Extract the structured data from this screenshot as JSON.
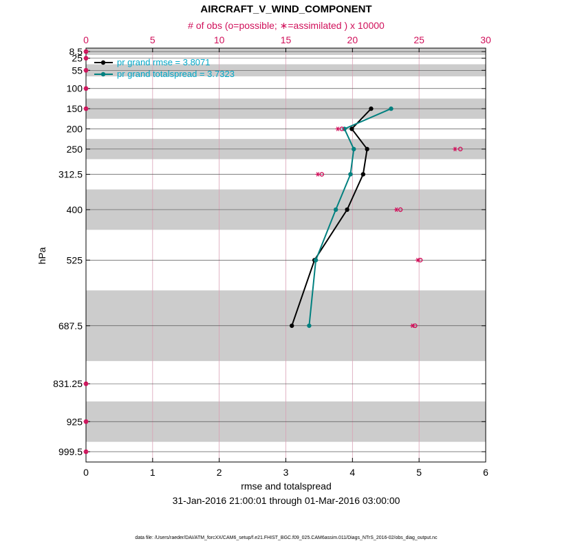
{
  "chart_data": {
    "type": "line",
    "title": "AIRCRAFT_V_WIND_COMPONENT",
    "top_axis_label": "# of obs (o=possible; ∗=assimilated ) x 10000",
    "xlabel": "rmse and totalspread",
    "ylabel": "hPa",
    "date_range": "31-Jan-2016 21:00:01 through 01-Mar-2016 03:00:00",
    "footer": "data file: /Users/raeder/DAI/ATM_forcXX/CAM6_setup/f.e21.FHIST_BGC.f09_025.CAM6assim.011/Diags_NTrS_2016-02/obs_diag_output.nc",
    "xlim": [
      0,
      6
    ],
    "x_ticks": [
      "0",
      "1",
      "2",
      "3",
      "4",
      "5",
      "6"
    ],
    "top_xlim": [
      0,
      30
    ],
    "top_ticks": [
      "0",
      "5",
      "10",
      "15",
      "20",
      "25",
      "30"
    ],
    "ylim_hpa": [
      1025,
      0
    ],
    "levels": [
      8.5,
      25,
      55,
      100,
      150,
      200,
      250,
      312.5,
      400,
      525,
      687.5,
      831.25,
      925,
      999.5
    ],
    "level_labels": [
      "8.5",
      "25",
      "55",
      "100",
      "150",
      "200",
      "250",
      "312.5",
      "400",
      "525",
      "687.5",
      "831.25",
      "925",
      "999.5"
    ],
    "shaded_bands": [
      [
        0,
        17
      ],
      [
        40,
        70
      ],
      [
        125,
        175
      ],
      [
        225,
        275
      ],
      [
        350,
        450
      ],
      [
        600,
        775
      ],
      [
        875,
        975
      ]
    ],
    "series": [
      {
        "name": "pr grand rmse = 3.8071",
        "color": "#000000",
        "points": [
          [
            4.28,
            150
          ],
          [
            3.99,
            200
          ],
          [
            4.22,
            250
          ],
          [
            4.16,
            312.5
          ],
          [
            3.92,
            400
          ],
          [
            3.43,
            525
          ],
          [
            3.09,
            687.5
          ]
        ]
      },
      {
        "name": "pr grand totalspread = 3.7323",
        "color": "#00807f",
        "points": [
          [
            4.58,
            150
          ],
          [
            3.88,
            200
          ],
          [
            4.02,
            250
          ],
          [
            3.97,
            312.5
          ],
          [
            3.75,
            400
          ],
          [
            3.45,
            525
          ],
          [
            3.35,
            687.5
          ]
        ]
      }
    ],
    "obs_possible": [
      [
        0,
        8.5
      ],
      [
        0,
        25
      ],
      [
        0,
        55
      ],
      [
        0,
        100
      ],
      [
        0,
        150
      ],
      [
        19.2,
        200
      ],
      [
        28.1,
        250
      ],
      [
        17.7,
        312.5
      ],
      [
        23.6,
        400
      ],
      [
        25.1,
        525
      ],
      [
        24.7,
        687.5
      ],
      [
        0,
        831.25
      ],
      [
        0,
        925
      ],
      [
        0,
        999.5
      ]
    ],
    "obs_assimilated": [
      [
        0,
        8.5
      ],
      [
        0,
        25
      ],
      [
        0,
        55
      ],
      [
        0,
        100
      ],
      [
        0,
        150
      ],
      [
        18.9,
        200
      ],
      [
        27.7,
        250
      ],
      [
        17.4,
        312.5
      ],
      [
        23.3,
        400
      ],
      [
        24.9,
        525
      ],
      [
        24.5,
        687.5
      ],
      [
        0,
        831.25
      ],
      [
        0,
        925
      ],
      [
        0,
        999.5
      ]
    ]
  },
  "colors": {
    "obs": "#d0105a",
    "legend_text": "#00a8c8",
    "band": "#cccccc"
  }
}
